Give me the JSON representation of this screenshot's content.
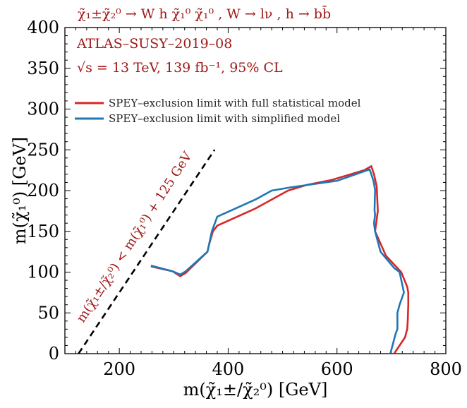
{
  "chart_data": {
    "type": "line",
    "title": "χ̃₁±χ̃₂⁰ → W h χ̃₁⁰ χ̃₁⁰ , W → lν , h → bb̄",
    "annotations": {
      "analysis": "ATLAS–SUSY–2019–08",
      "conditions": "√s = 13 TeV, 139 fb⁻¹, 95% CL",
      "diagonal_label": "m(χ̃₁±/χ̃₂⁰) < m(χ̃₁⁰) + 125 GeV"
    },
    "xlabel": "m(χ̃₁±/χ̃₂⁰) [GeV]",
    "ylabel": "m(χ̃₁⁰) [GeV]",
    "xlim": [
      100,
      800
    ],
    "ylim": [
      0,
      400
    ],
    "xticks": [
      200,
      400,
      600,
      800
    ],
    "yticks": [
      0,
      50,
      100,
      150,
      200,
      250,
      300,
      350,
      400
    ],
    "grid": false,
    "legend_position": "upper-left",
    "colors": {
      "red": "#d62728",
      "blue": "#1f77b4",
      "annotation": "#a01818",
      "diagonal": "#000000"
    },
    "diagonal": {
      "x": [
        125,
        375
      ],
      "y": [
        0,
        250
      ],
      "style": "dashed"
    },
    "series": [
      {
        "name": "SPEY–exclusion limit with full statistical model",
        "color": "#d62728",
        "x": [
          258,
          298,
          312,
          322,
          362,
          365,
          372,
          380,
          450,
          510,
          545,
          590,
          650,
          663,
          668,
          673,
          675,
          670,
          690,
          718,
          729,
          731,
          731,
          730,
          729,
          725,
          705
        ],
        "y": [
          107,
          101,
          95,
          99,
          125,
          134,
          150,
          157,
          178,
          200,
          207,
          213,
          225,
          230,
          220,
          205,
          175,
          150,
          120,
          100,
          82,
          75,
          60,
          40,
          30,
          20,
          0
        ]
      },
      {
        "name": "SPEY–exclusion limit with simplified model",
        "color": "#1f77b4",
        "x": [
          258,
          298,
          312,
          322,
          362,
          370,
          380,
          450,
          480,
          515,
          600,
          660,
          667,
          670,
          669,
          670,
          668,
          670,
          672,
          680,
          705,
          715,
          723,
          715,
          711,
          711,
          708,
          698
        ],
        "y": [
          108,
          101,
          97,
          101,
          125,
          150,
          168,
          189,
          200,
          204,
          212,
          226,
          212,
          201,
          176,
          170,
          160,
          150,
          145,
          125,
          105,
          100,
          75,
          60,
          50,
          30,
          25,
          0
        ]
      }
    ]
  }
}
